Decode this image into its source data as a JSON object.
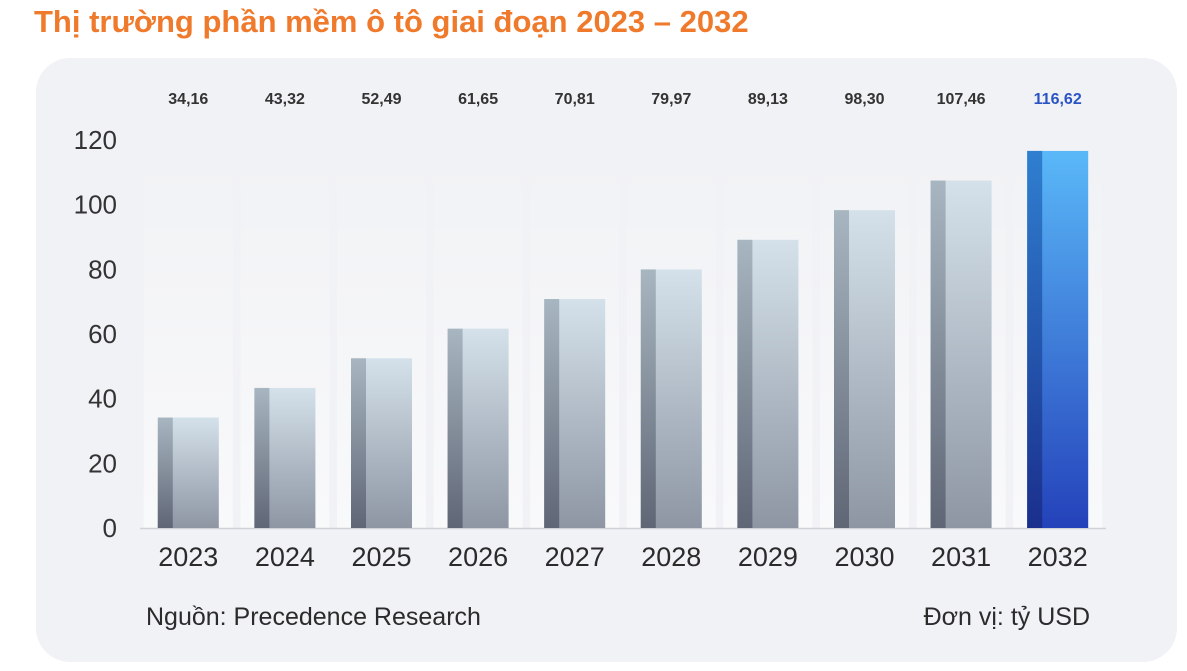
{
  "source_note": "Nguồn: Precedence Research",
  "unit_note": "Đơn vị: tỷ USD",
  "colors": {
    "title": "#f07a2c",
    "bar_top": "#d4e1ea",
    "bar_bottom": "#8e96a4",
    "highlight_top": "#5ab8f8",
    "highlight_bottom": "#2442ba",
    "highlight_label": "#2a54c4"
  },
  "chart_data": {
    "type": "bar",
    "title": "Thị trường phần mềm ô tô giai đoạn 2023 – 2032",
    "xlabel": "",
    "ylabel": "",
    "categories": [
      "2023",
      "2024",
      "2025",
      "2026",
      "2027",
      "2028",
      "2029",
      "2030",
      "2031",
      "2032"
    ],
    "values": [
      34.16,
      43.32,
      52.49,
      61.65,
      70.81,
      79.97,
      89.13,
      98.3,
      107.46,
      116.62
    ],
    "value_labels": [
      "34,16",
      "43,32",
      "52,49",
      "61,65",
      "70,81",
      "79,97",
      "89,13",
      "98,30",
      "107,46",
      "116,62"
    ],
    "yticks": [
      "0",
      "20",
      "40",
      "60",
      "80",
      "100",
      "120"
    ],
    "ylim": [
      0,
      120
    ],
    "grid": false,
    "legend": "none",
    "highlight_index": 9
  }
}
